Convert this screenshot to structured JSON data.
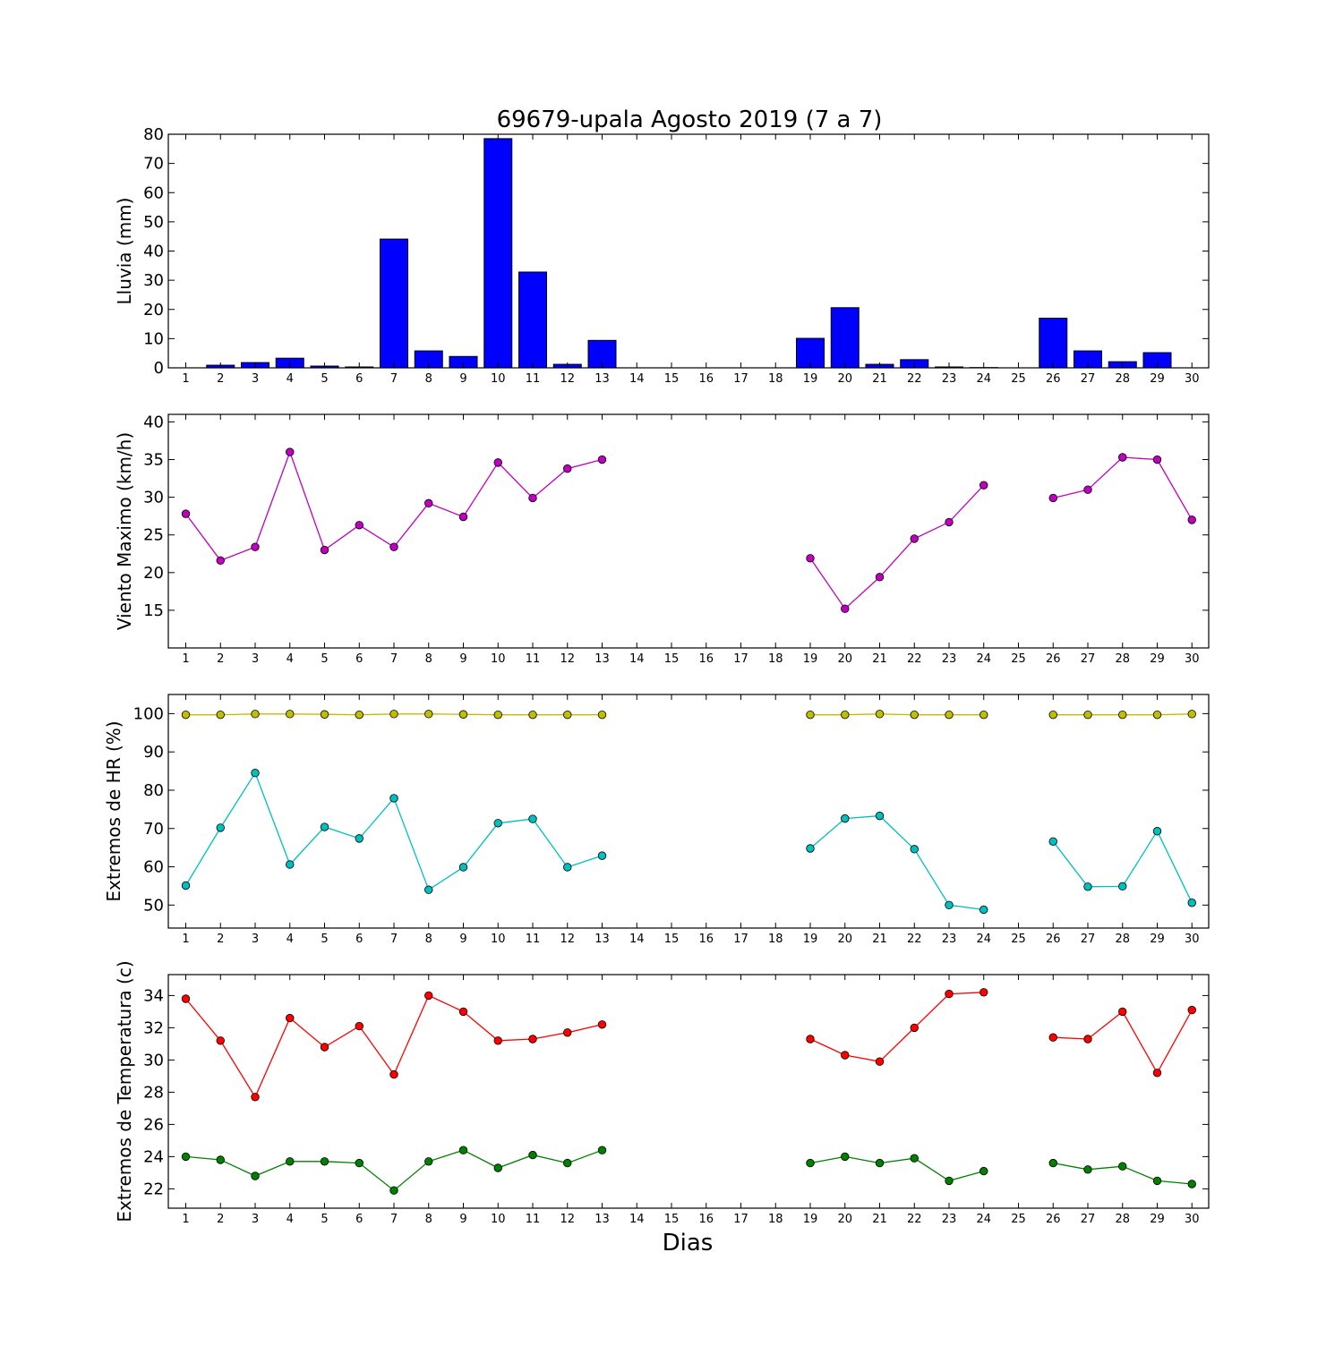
{
  "chart_data": {
    "title": "69679-upala Agosto 2019  (7 a 7)",
    "xlabel": "Dias",
    "days": [
      1,
      2,
      3,
      4,
      5,
      6,
      7,
      8,
      9,
      10,
      11,
      12,
      13,
      14,
      15,
      16,
      17,
      18,
      19,
      20,
      21,
      22,
      23,
      24,
      25,
      26,
      27,
      28,
      29,
      30
    ],
    "panels": [
      {
        "id": "lluvia",
        "type": "bar",
        "ylabel": "Lluvia (mm)",
        "ylim": [
          0,
          80
        ],
        "yticks": [
          0,
          10,
          20,
          30,
          40,
          50,
          60,
          70,
          80
        ],
        "series": [
          {
            "color": "#0000ff",
            "values": [
              0,
              0.9,
              1.8,
              3.3,
              0.6,
              0.3,
              44.1,
              5.8,
              3.9,
              78.5,
              32.8,
              1.2,
              9.4,
              0,
              0,
              0,
              0,
              0,
              10.1,
              20.6,
              1.2,
              2.8,
              0.3,
              0.1,
              0,
              17.0,
              5.8,
              2.1,
              5.2,
              0
            ]
          }
        ]
      },
      {
        "id": "viento",
        "type": "line",
        "ylabel": "Viento Maximo (km/h)",
        "ylim": [
          10,
          41
        ],
        "yticks": [
          15,
          20,
          25,
          30,
          35,
          40
        ],
        "series": [
          {
            "color": "#bf00bf",
            "values": [
              27.8,
              21.6,
              23.4,
              36.0,
              23.0,
              26.3,
              23.4,
              29.2,
              27.4,
              34.6,
              29.9,
              33.8,
              35.0,
              null,
              null,
              null,
              null,
              null,
              21.9,
              15.2,
              19.4,
              24.5,
              26.7,
              31.6,
              null,
              29.9,
              31.0,
              35.3,
              35.0,
              27.0
            ]
          }
        ]
      },
      {
        "id": "hr",
        "type": "line",
        "ylabel": "Extremos de HR (%)",
        "ylim": [
          44,
          105
        ],
        "yticks": [
          50,
          60,
          70,
          80,
          90,
          100
        ],
        "series": [
          {
            "color": "#bfbf00",
            "values": [
              99.7,
              99.7,
              99.9,
              99.9,
              99.8,
              99.7,
              99.9,
              99.9,
              99.8,
              99.7,
              99.7,
              99.7,
              99.7,
              null,
              null,
              null,
              null,
              null,
              99.7,
              99.7,
              99.9,
              99.7,
              99.7,
              99.7,
              null,
              99.7,
              99.7,
              99.7,
              99.7,
              99.9
            ]
          },
          {
            "color": "#00bfbf",
            "values": [
              55.1,
              70.2,
              84.5,
              60.6,
              70.4,
              67.4,
              77.9,
              54.0,
              59.9,
              71.4,
              72.5,
              59.9,
              62.9,
              null,
              null,
              null,
              null,
              null,
              64.8,
              72.6,
              73.3,
              64.6,
              50.0,
              48.8,
              null,
              66.6,
              54.8,
              54.9,
              69.3,
              50.6
            ]
          }
        ]
      },
      {
        "id": "temperatura",
        "type": "line",
        "ylabel": "Extremos de Temperatura (c)",
        "ylim": [
          20.8,
          35.3
        ],
        "yticks": [
          22,
          24,
          26,
          28,
          30,
          32,
          34
        ],
        "series": [
          {
            "color": "#ff0000",
            "values": [
              33.8,
              31.2,
              27.7,
              32.6,
              30.8,
              32.1,
              29.1,
              34.0,
              33.0,
              31.2,
              31.3,
              31.7,
              32.2,
              null,
              null,
              null,
              null,
              null,
              31.3,
              30.3,
              29.9,
              32.0,
              34.1,
              34.2,
              null,
              31.4,
              31.3,
              33.0,
              29.2,
              33.1
            ]
          },
          {
            "color": "#008000",
            "values": [
              24.0,
              23.8,
              22.8,
              23.7,
              23.7,
              23.6,
              21.9,
              23.7,
              24.4,
              23.3,
              24.1,
              23.6,
              24.4,
              null,
              null,
              null,
              null,
              null,
              23.6,
              24.0,
              23.6,
              23.9,
              22.5,
              23.1,
              null,
              23.6,
              23.2,
              23.4,
              22.5,
              22.3
            ]
          }
        ]
      }
    ]
  }
}
